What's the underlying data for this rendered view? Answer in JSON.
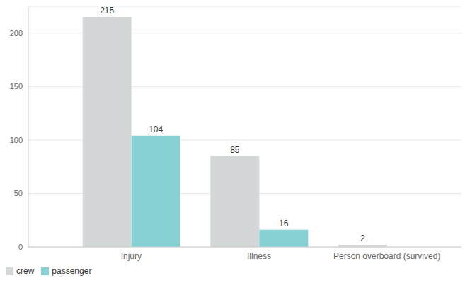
{
  "chart_data": {
    "type": "bar",
    "categories": [
      "Injury",
      "Illness",
      "Person overboard (survived)"
    ],
    "series": [
      {
        "name": "crew",
        "color": "#d4d7d8",
        "values": [
          215,
          85,
          2
        ]
      },
      {
        "name": "passenger",
        "color": "#87d1d4",
        "values": [
          104,
          16,
          null
        ]
      }
    ],
    "ylim": [
      0,
      225
    ],
    "yticks": [
      0,
      50,
      100,
      150,
      200
    ],
    "grid": true,
    "legend": "bottom-left",
    "data_labels": true
  }
}
